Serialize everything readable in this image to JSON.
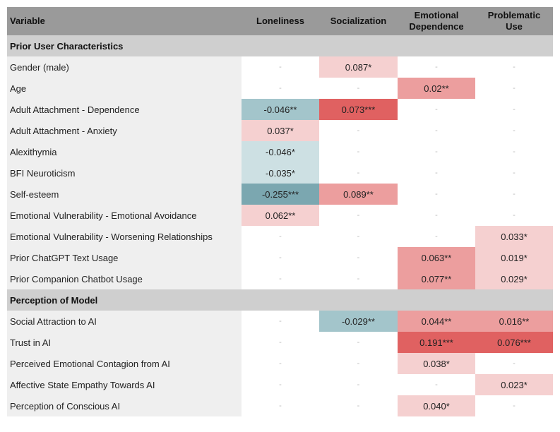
{
  "header": {
    "variable": "Variable",
    "loneliness": "Loneliness",
    "socialization": "Socialization",
    "emotional_dependence_1": "Emotional",
    "emotional_dependence_2": "Dependence",
    "problematic_use_1": "Problematic",
    "problematic_use_2": "Use"
  },
  "colors": {
    "pink_light": "#f5d0d0",
    "pink_mid": "#ec9e9e",
    "red_strong": "#e06161",
    "teal_light": "#cde0e3",
    "teal_mid": "#a3c5cb",
    "teal_dark": "#7ba7b0"
  },
  "sections": [
    {
      "title": "Prior User Characteristics",
      "rows": [
        {
          "label": "Gender (male)",
          "cells": [
            {
              "text": "-",
              "color": ""
            },
            {
              "text": "0.087*",
              "color": "#f5d0d0"
            },
            {
              "text": "-",
              "color": ""
            },
            {
              "text": "-",
              "color": ""
            }
          ]
        },
        {
          "label": "Age",
          "cells": [
            {
              "text": "-",
              "color": ""
            },
            {
              "text": "-",
              "color": ""
            },
            {
              "text": "0.02**",
              "color": "#ec9e9e"
            },
            {
              "text": "-",
              "color": ""
            }
          ]
        },
        {
          "label": "Adult Attachment - Dependence",
          "cells": [
            {
              "text": "-0.046**",
              "color": "#a3c5cb"
            },
            {
              "text": "0.073***",
              "color": "#e06161"
            },
            {
              "text": "-",
              "color": ""
            },
            {
              "text": "-",
              "color": ""
            }
          ]
        },
        {
          "label": "Adult Attachment - Anxiety",
          "cells": [
            {
              "text": "0.037*",
              "color": "#f5d0d0"
            },
            {
              "text": "-",
              "color": ""
            },
            {
              "text": "-",
              "color": ""
            },
            {
              "text": "-",
              "color": ""
            }
          ]
        },
        {
          "label": "Alexithymia",
          "cells": [
            {
              "text": "-0.046*",
              "color": "#cde0e3"
            },
            {
              "text": "-",
              "color": ""
            },
            {
              "text": "-",
              "color": ""
            },
            {
              "text": "-",
              "color": ""
            }
          ]
        },
        {
          "label": "BFI Neuroticism",
          "cells": [
            {
              "text": "-0.035*",
              "color": "#cde0e3"
            },
            {
              "text": "-",
              "color": ""
            },
            {
              "text": "-",
              "color": ""
            },
            {
              "text": "-",
              "color": ""
            }
          ]
        },
        {
          "label": "Self-esteem",
          "cells": [
            {
              "text": "-0.255***",
              "color": "#7ba7b0"
            },
            {
              "text": "0.089**",
              "color": "#ec9e9e"
            },
            {
              "text": "-",
              "color": ""
            },
            {
              "text": "-",
              "color": ""
            }
          ]
        },
        {
          "label": "Emotional Vulnerability - Emotional Avoidance",
          "cells": [
            {
              "text": "0.062**",
              "color": "#f5d0d0"
            },
            {
              "text": "-",
              "color": ""
            },
            {
              "text": "-",
              "color": ""
            },
            {
              "text": "-",
              "color": ""
            }
          ]
        },
        {
          "label": "Emotional Vulnerability - Worsening Relationships",
          "cells": [
            {
              "text": "-",
              "color": ""
            },
            {
              "text": "-",
              "color": ""
            },
            {
              "text": "-",
              "color": ""
            },
            {
              "text": "0.033*",
              "color": "#f5d0d0"
            }
          ]
        },
        {
          "label": "Prior ChatGPT Text Usage",
          "cells": [
            {
              "text": "-",
              "color": ""
            },
            {
              "text": "-",
              "color": ""
            },
            {
              "text": "0.063**",
              "color": "#ec9e9e"
            },
            {
              "text": "0.019*",
              "color": "#f5d0d0"
            }
          ]
        },
        {
          "label": "Prior Companion Chatbot Usage",
          "cells": [
            {
              "text": "-",
              "color": ""
            },
            {
              "text": "-",
              "color": ""
            },
            {
              "text": "0.077**",
              "color": "#ec9e9e"
            },
            {
              "text": "0.029*",
              "color": "#f5d0d0"
            }
          ]
        }
      ]
    },
    {
      "title": "Perception of Model",
      "rows": [
        {
          "label": "Social Attraction to AI",
          "cells": [
            {
              "text": "-",
              "color": ""
            },
            {
              "text": "-0.029**",
              "color": "#a3c5cb"
            },
            {
              "text": "0.044**",
              "color": "#ec9e9e"
            },
            {
              "text": "0.016**",
              "color": "#ec9e9e"
            }
          ]
        },
        {
          "label": "Trust in AI",
          "cells": [
            {
              "text": "-",
              "color": ""
            },
            {
              "text": "-",
              "color": ""
            },
            {
              "text": "0.191***",
              "color": "#e06161"
            },
            {
              "text": "0.076***",
              "color": "#e06161"
            }
          ]
        },
        {
          "label": "Perceived Emotional Contagion from AI",
          "cells": [
            {
              "text": "-",
              "color": ""
            },
            {
              "text": "-",
              "color": ""
            },
            {
              "text": "0.038*",
              "color": "#f5d0d0"
            },
            {
              "text": "-",
              "color": ""
            }
          ]
        },
        {
          "label": "Affective State Empathy Towards AI",
          "cells": [
            {
              "text": "-",
              "color": ""
            },
            {
              "text": "-",
              "color": ""
            },
            {
              "text": "-",
              "color": ""
            },
            {
              "text": "0.023*",
              "color": "#f5d0d0"
            }
          ]
        },
        {
          "label": "Perception of Conscious AI",
          "cells": [
            {
              "text": "-",
              "color": ""
            },
            {
              "text": "-",
              "color": ""
            },
            {
              "text": "0.040*",
              "color": "#f5d0d0"
            },
            {
              "text": "-",
              "color": ""
            }
          ]
        }
      ]
    }
  ]
}
